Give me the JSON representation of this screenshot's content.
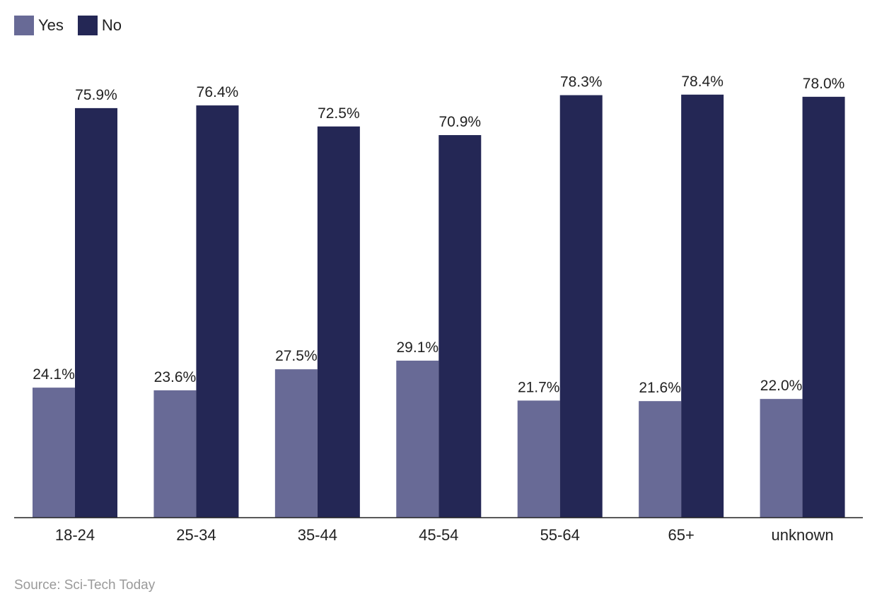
{
  "chart_data": {
    "type": "bar",
    "categories": [
      "18-24",
      "25-34",
      "35-44",
      "45-54",
      "55-64",
      "65+",
      "unknown"
    ],
    "series": [
      {
        "name": "Yes",
        "color": "#686a96",
        "values": [
          24.1,
          23.6,
          27.5,
          29.1,
          21.7,
          21.6,
          22.0
        ],
        "labels": [
          "24.1%",
          "23.6%",
          "27.5%",
          "29.1%",
          "21.7%",
          "21.6%",
          "22.0%"
        ]
      },
      {
        "name": "No",
        "color": "#242755",
        "values": [
          75.9,
          76.4,
          72.5,
          70.9,
          78.3,
          78.4,
          78.0
        ],
        "labels": [
          "75.9%",
          "76.4%",
          "72.5%",
          "70.9%",
          "78.3%",
          "78.4%",
          "78.0%"
        ]
      }
    ],
    "ylim": [
      0,
      80
    ],
    "grid": false,
    "legend_position": "top-left",
    "source": "Source: Sci-Tech Today"
  }
}
